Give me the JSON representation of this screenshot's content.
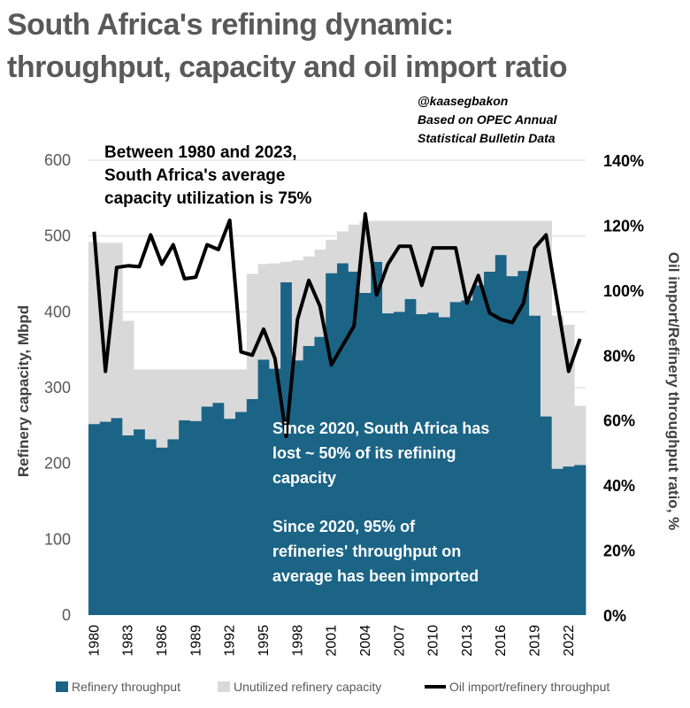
{
  "title": "South Africa's refining dynamic: throughput, capacity and oil import ratio",
  "credit": [
    "@kaasegbakon",
    "Based on OPEC Annual",
    "Statistical Bulletin Data"
  ],
  "annotations": {
    "utilization": [
      "Between 1980 and 2023,",
      "South Africa's average",
      "capacity utilization is 75%"
    ],
    "capacity_loss": [
      "Since 2020, South Africa has",
      "lost ~ 50% of its refining",
      "capacity"
    ],
    "imports": [
      "Since 2020, 95% of",
      "refineries' throughput on",
      "average has been imported"
    ]
  },
  "colors": {
    "throughput": "#1b6486",
    "unutilized": "#d9d9d9",
    "import_ratio": "#000000",
    "grid": "#d9d9d9"
  },
  "chart_data": {
    "type": "bar",
    "stacked": true,
    "x": [
      1980,
      1981,
      1982,
      1983,
      1984,
      1985,
      1986,
      1987,
      1988,
      1989,
      1990,
      1991,
      1992,
      1993,
      1994,
      1995,
      1996,
      1997,
      1998,
      1999,
      2000,
      2001,
      2002,
      2003,
      2004,
      2005,
      2006,
      2007,
      2008,
      2009,
      2010,
      2011,
      2012,
      2013,
      2014,
      2015,
      2016,
      2017,
      2018,
      2019,
      2020,
      2021,
      2022,
      2023
    ],
    "x_tick_labels": [
      "1980",
      "1983",
      "1986",
      "1989",
      "1992",
      "1995",
      "1998",
      "2001",
      "2004",
      "2007",
      "2010",
      "2013",
      "2016",
      "2019",
      "2022"
    ],
    "series": [
      {
        "name": "Refinery throughput",
        "type": "bar",
        "axis": "left",
        "values": [
          252,
          255,
          260,
          237,
          245,
          232,
          221,
          232,
          257,
          256,
          275,
          280,
          259,
          268,
          285,
          337,
          325,
          439,
          336,
          355,
          367,
          451,
          464,
          453,
          425,
          466,
          398,
          400,
          417,
          397,
          399,
          393,
          413,
          415,
          435,
          453,
          475,
          447,
          454,
          395,
          262,
          193,
          196,
          198
        ]
      },
      {
        "name": "Unutilized refinery capacity",
        "type": "bar",
        "axis": "left",
        "values": [
          240,
          236,
          231,
          151,
          79,
          92,
          103,
          92,
          67,
          68,
          49,
          44,
          65,
          56,
          165,
          126,
          139,
          27,
          132,
          118,
          115,
          44,
          42,
          62,
          95,
          54,
          122,
          120,
          103,
          123,
          121,
          127,
          107,
          105,
          85,
          67,
          45,
          73,
          66,
          125,
          258,
          202,
          187,
          78
        ]
      },
      {
        "name": "Oil import/refinery throughput",
        "type": "line",
        "axis": "right",
        "unit": "%",
        "values": [
          118,
          75,
          107,
          107.5,
          107.2,
          117,
          108,
          114,
          103.5,
          104,
          114,
          112.5,
          121.5,
          81,
          80,
          88,
          79,
          55,
          91,
          103,
          95,
          77,
          83,
          89,
          123.5,
          98.5,
          108,
          113.5,
          113.5,
          101.5,
          113,
          113,
          113,
          96,
          104.5,
          93,
          91,
          90,
          96,
          113,
          117,
          96,
          75,
          85
        ]
      }
    ],
    "ylabel": "Refinery capacity, Mbpd",
    "ylim": [
      0,
      600
    ],
    "yticks": [
      0,
      100,
      200,
      300,
      400,
      500,
      600
    ],
    "y2label": "Oil import/Refinery throughput ratio, %",
    "y2lim": [
      0,
      140
    ],
    "y2ticks": [
      "0%",
      "20%",
      "40%",
      "60%",
      "80%",
      "100%",
      "120%",
      "140%"
    ],
    "y2tick_values": [
      0,
      20,
      40,
      60,
      80,
      100,
      120,
      140
    ],
    "grid": true,
    "legend": "bottom"
  }
}
